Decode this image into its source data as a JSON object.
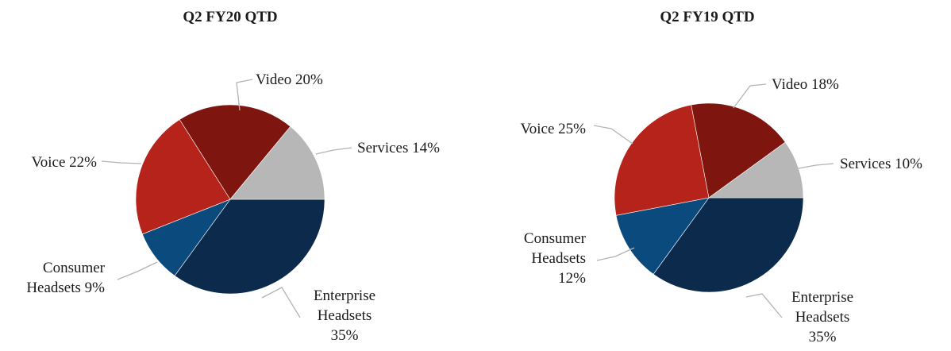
{
  "chart_data": [
    {
      "type": "pie",
      "title": "Q2 FY20 QTD",
      "slices": [
        {
          "label": "Enterprise Headsets",
          "value": 35,
          "color": "#0c2a4c",
          "label_lines": [
            "Enterprise",
            "Headsets",
            "35%"
          ],
          "label_align": "middle"
        },
        {
          "label": "Consumer Headsets",
          "value": 9,
          "color": "#0b4a7d",
          "label_lines": [
            "Consumer",
            "Headsets 9%"
          ],
          "label_align": "end"
        },
        {
          "label": "Voice",
          "value": 22,
          "color": "#b5231a",
          "label_lines": [
            "Voice 22%"
          ],
          "label_align": "end"
        },
        {
          "label": "Video",
          "value": 20,
          "color": "#7e160f",
          "label_lines": [
            "Video 20%"
          ],
          "label_align": "start"
        },
        {
          "label": "Services",
          "value": 14,
          "color": "#b7b7b7",
          "label_lines": [
            "Services 14%"
          ],
          "label_align": "start"
        }
      ]
    },
    {
      "type": "pie",
      "title": "Q2 FY19 QTD",
      "slices": [
        {
          "label": "Enterprise Headsets",
          "value": 35,
          "color": "#0c2a4c",
          "label_lines": [
            "Enterprise",
            "Headsets",
            "35%"
          ],
          "label_align": "middle"
        },
        {
          "label": "Consumer Headsets",
          "value": 12,
          "color": "#0b4a7d",
          "label_lines": [
            "Consumer",
            "Headsets",
            "12%"
          ],
          "label_align": "end"
        },
        {
          "label": "Voice",
          "value": 25,
          "color": "#b5231a",
          "label_lines": [
            "Voice 25%"
          ],
          "label_align": "end"
        },
        {
          "label": "Video",
          "value": 18,
          "color": "#7e160f",
          "label_lines": [
            "Video 18%"
          ],
          "label_align": "start"
        },
        {
          "label": "Services",
          "value": 10,
          "color": "#b7b7b7",
          "label_lines": [
            "Services 10%"
          ],
          "label_align": "start"
        }
      ]
    }
  ]
}
